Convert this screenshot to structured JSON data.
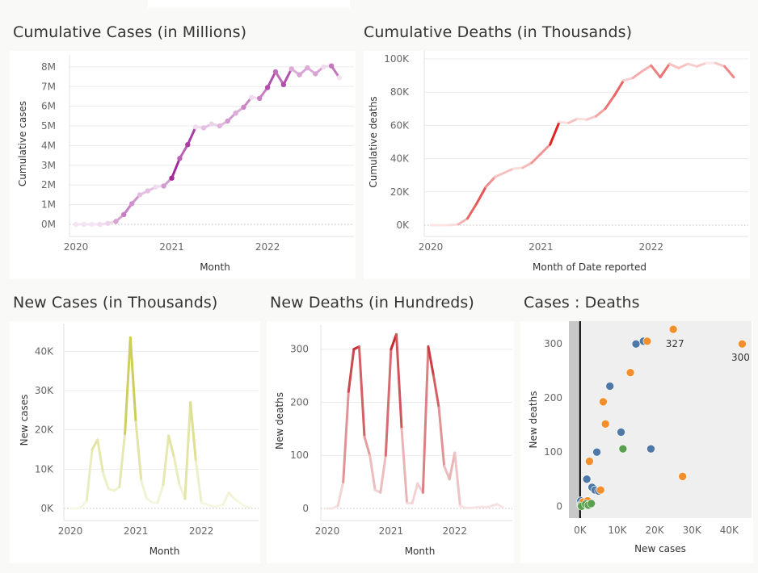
{
  "panels": {
    "cum_cases_title": "Cumulative Cases (in Millions)",
    "cum_deaths_title": "Cumulative Deaths (in Thousands)",
    "new_cases_title": "New Cases (in Thousands)",
    "new_deaths_title": "New Deaths (in Hundreds)",
    "scatter_title": "Cases : Deaths"
  },
  "colors": {
    "cum_cases": "#a22a9a",
    "cum_deaths": "#e02424",
    "new_cases": "#bcc12a",
    "new_deaths": "#c02026",
    "blue": "#4e79a7",
    "orange": "#f28e2b",
    "green": "#59a14f"
  },
  "chart_data": [
    {
      "id": "cum_cases",
      "type": "line",
      "xlabel": "Month",
      "ylabel": "Cumulative cases",
      "x_ticks": [
        "2020",
        "2021",
        "2022"
      ],
      "y_ticks": [
        "0M",
        "1M",
        "2M",
        "3M",
        "4M",
        "5M",
        "6M",
        "7M",
        "8M"
      ],
      "ylim": [
        0,
        8.2
      ],
      "x": [
        "2020-01",
        "2020-02",
        "2020-03",
        "2020-04",
        "2020-05",
        "2020-06",
        "2020-07",
        "2020-08",
        "2020-09",
        "2020-10",
        "2020-11",
        "2020-12",
        "2021-01",
        "2021-02",
        "2021-03",
        "2021-04",
        "2021-05",
        "2021-06",
        "2021-07",
        "2021-08",
        "2021-09",
        "2021-10",
        "2021-11",
        "2021-12",
        "2022-01",
        "2022-02",
        "2022-03",
        "2022-04",
        "2022-05",
        "2022-06",
        "2022-07",
        "2022-08",
        "2022-09",
        "2022-10"
      ],
      "values": [
        0,
        0,
        0,
        0,
        0.05,
        0.15,
        0.5,
        1.05,
        1.5,
        1.7,
        1.9,
        1.95,
        2.35,
        3.35,
        4.05,
        4.95,
        4.9,
        5.1,
        5.0,
        5.25,
        5.65,
        5.95,
        6.45,
        6.4,
        6.95,
        7.75,
        7.1,
        7.9,
        7.6,
        7.95,
        7.65,
        8.0,
        8.05,
        7.45
      ],
      "markers": true
    },
    {
      "id": "cum_deaths",
      "type": "line",
      "xlabel": "Month of Date reported",
      "ylabel": "Cumulative deaths",
      "x_ticks": [
        "2020",
        "2021",
        "2022"
      ],
      "y_ticks": [
        "0K",
        "20K",
        "40K",
        "60K",
        "80K",
        "100K"
      ],
      "ylim": [
        0,
        100
      ],
      "x": [
        "2020-01",
        "2020-02",
        "2020-03",
        "2020-04",
        "2020-05",
        "2020-06",
        "2020-07",
        "2020-08",
        "2020-09",
        "2020-10",
        "2020-11",
        "2020-12",
        "2021-01",
        "2021-02",
        "2021-03",
        "2021-04",
        "2021-05",
        "2021-06",
        "2021-07",
        "2021-08",
        "2021-09",
        "2021-10",
        "2021-11",
        "2021-12",
        "2022-01",
        "2022-02",
        "2022-03",
        "2022-04",
        "2022-05",
        "2022-06",
        "2022-07",
        "2022-08",
        "2022-09",
        "2022-10"
      ],
      "values": [
        0,
        0,
        0,
        0.5,
        4,
        13,
        23,
        29,
        31.5,
        34,
        34.5,
        37.5,
        43,
        48.5,
        62,
        61.5,
        64,
        63.5,
        65.5,
        70,
        78,
        87,
        88.5,
        92.5,
        96,
        89,
        97,
        94.5,
        97,
        95.5,
        97.5,
        97.5,
        95.5,
        89
      ]
    },
    {
      "id": "new_cases",
      "type": "line",
      "xlabel": "Month",
      "ylabel": "New cases",
      "x_ticks": [
        "2020",
        "2021",
        "2022"
      ],
      "y_ticks": [
        "0K",
        "10K",
        "20K",
        "30K",
        "40K"
      ],
      "ylim": [
        0,
        45
      ],
      "x": [
        "2020-01",
        "2020-02",
        "2020-03",
        "2020-04",
        "2020-05",
        "2020-06",
        "2020-07",
        "2020-08",
        "2020-09",
        "2020-10",
        "2020-11",
        "2020-12",
        "2021-01",
        "2021-02",
        "2021-03",
        "2021-04",
        "2021-05",
        "2021-06",
        "2021-07",
        "2021-08",
        "2021-09",
        "2021-10",
        "2021-11",
        "2021-12",
        "2022-01",
        "2022-02",
        "2022-03",
        "2022-04",
        "2022-05",
        "2022-06",
        "2022-07",
        "2022-08",
        "2022-09",
        "2022-10"
      ],
      "values": [
        0,
        0,
        0.3,
        2,
        15,
        17.5,
        9,
        5,
        4.5,
        5.5,
        19,
        43.5,
        22,
        7,
        2.5,
        1.5,
        1.5,
        6,
        18.5,
        13,
        6,
        2.5,
        27,
        12,
        1.5,
        1,
        0.5,
        0.5,
        1,
        4,
        2.5,
        1.5,
        0.5,
        0.3
      ]
    },
    {
      "id": "new_deaths",
      "type": "line",
      "xlabel": "Month",
      "ylabel": "New deaths",
      "x_ticks": [
        "2020",
        "2021",
        "2022"
      ],
      "y_ticks": [
        "0",
        "100",
        "200",
        "300"
      ],
      "ylim": [
        0,
        330
      ],
      "x": [
        "2020-01",
        "2020-02",
        "2020-03",
        "2020-04",
        "2020-05",
        "2020-06",
        "2020-07",
        "2020-08",
        "2020-09",
        "2020-10",
        "2020-11",
        "2020-12",
        "2021-01",
        "2021-02",
        "2021-03",
        "2021-04",
        "2021-05",
        "2021-06",
        "2021-07",
        "2021-08",
        "2021-09",
        "2021-10",
        "2021-11",
        "2021-12",
        "2022-01",
        "2022-02",
        "2022-03",
        "2022-04",
        "2022-05",
        "2022-06",
        "2022-07",
        "2022-08",
        "2022-09",
        "2022-10"
      ],
      "values": [
        0,
        0,
        5,
        50,
        220,
        300,
        305,
        135,
        100,
        35,
        30,
        100,
        300,
        328,
        150,
        10,
        10,
        47,
        30,
        305,
        250,
        190,
        80,
        55,
        105,
        5,
        1,
        1,
        2,
        3,
        2,
        5,
        8,
        2
      ]
    },
    {
      "id": "scatter",
      "type": "scatter",
      "xlabel": "New cases",
      "ylabel": "New deaths",
      "x_ticks": [
        "0K",
        "10K",
        "20K",
        "30K",
        "40K"
      ],
      "y_ticks": [
        "0",
        "100",
        "200",
        "300"
      ],
      "xlim": [
        -3,
        46
      ],
      "ylim": [
        -22,
        342
      ],
      "annotations": [
        "327",
        "300"
      ],
      "series": [
        {
          "color": "blue",
          "points": [
            [
              0.1,
              2
            ],
            [
              0.2,
              10
            ],
            [
              0.5,
              1
            ],
            [
              1.2,
              5
            ],
            [
              1.8,
              50
            ],
            [
              3.2,
              35
            ],
            [
              4.0,
              30
            ],
            [
              4.5,
              100
            ],
            [
              8.0,
              222
            ],
            [
              11.0,
              137
            ],
            [
              15.0,
              300
            ],
            [
              17.0,
              305
            ],
            [
              19.0,
              106
            ],
            [
              5.0,
              28
            ]
          ]
        },
        {
          "color": "orange",
          "points": [
            [
              0.3,
              3
            ],
            [
              0.8,
              8
            ],
            [
              2.0,
              10
            ],
            [
              2.5,
              83
            ],
            [
              5.5,
              30
            ],
            [
              6.2,
              193
            ],
            [
              6.8,
              152
            ],
            [
              13.5,
              247
            ],
            [
              18.0,
              305
            ],
            [
              25.0,
              327
            ],
            [
              27.5,
              55
            ],
            [
              43.5,
              300
            ]
          ]
        },
        {
          "color": "green",
          "points": [
            [
              0.4,
              0
            ],
            [
              1.5,
              4
            ],
            [
              2.2,
              2
            ],
            [
              3.0,
              5
            ],
            [
              11.5,
              106
            ]
          ]
        }
      ]
    }
  ]
}
